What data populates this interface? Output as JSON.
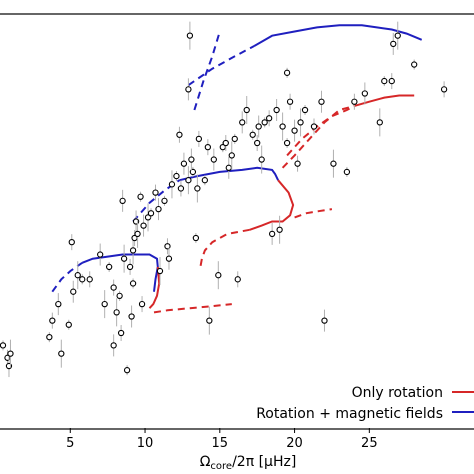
{
  "chart_data": {
    "type": "scatter",
    "xlabel_main": "Ω",
    "xlabel_sub": "core",
    "xlabel_rest": "/2π [μHz]",
    "xlim": [
      0.3,
      32
    ],
    "ylim": [
      0,
      1
    ],
    "x_ticks": [
      5,
      10,
      15,
      20,
      25
    ],
    "legend_position": "bottom-right",
    "colors": {
      "rotation": "#d62728",
      "magnetic": "#1f1fbf",
      "points": "#000000",
      "errorbars": "#b0b0b0"
    },
    "legend": [
      {
        "label": "Only rotation",
        "color": "#d62728"
      },
      {
        "label": "Rotation + magnetic fields",
        "color": "#1f1fbf"
      }
    ],
    "points": [
      [
        0.5,
        0.2
      ],
      [
        0.8,
        0.17
      ],
      [
        0.9,
        0.15
      ],
      [
        1.0,
        0.18
      ],
      [
        3.6,
        0.22
      ],
      [
        3.8,
        0.26
      ],
      [
        4.2,
        0.3
      ],
      [
        4.4,
        0.18
      ],
      [
        4.9,
        0.25
      ],
      [
        5.1,
        0.45
      ],
      [
        5.2,
        0.33
      ],
      [
        5.5,
        0.37
      ],
      [
        5.8,
        0.36
      ],
      [
        6.3,
        0.36
      ],
      [
        7.0,
        0.42
      ],
      [
        7.3,
        0.3
      ],
      [
        7.6,
        0.39
      ],
      [
        7.9,
        0.34
      ],
      [
        7.9,
        0.2
      ],
      [
        8.1,
        0.28
      ],
      [
        8.3,
        0.32
      ],
      [
        8.4,
        0.23
      ],
      [
        8.5,
        0.55
      ],
      [
        8.6,
        0.41
      ],
      [
        8.8,
        0.14
      ],
      [
        9.0,
        0.39
      ],
      [
        9.1,
        0.27
      ],
      [
        9.2,
        0.43
      ],
      [
        9.2,
        0.35
      ],
      [
        9.3,
        0.46
      ],
      [
        9.4,
        0.5
      ],
      [
        9.5,
        0.47
      ],
      [
        9.7,
        0.56
      ],
      [
        9.8,
        0.3
      ],
      [
        9.9,
        0.49
      ],
      [
        10.2,
        0.51
      ],
      [
        10.4,
        0.52
      ],
      [
        10.7,
        0.57
      ],
      [
        10.9,
        0.53
      ],
      [
        11.0,
        0.38
      ],
      [
        11.3,
        0.55
      ],
      [
        11.5,
        0.44
      ],
      [
        11.6,
        0.41
      ],
      [
        11.8,
        0.59
      ],
      [
        12.1,
        0.61
      ],
      [
        12.4,
        0.58
      ],
      [
        12.6,
        0.64
      ],
      [
        12.9,
        0.6
      ],
      [
        13.2,
        0.62
      ],
      [
        12.3,
        0.71
      ],
      [
        13.1,
        0.65
      ],
      [
        13.5,
        0.58
      ],
      [
        13.4,
        0.46
      ],
      [
        13.6,
        0.7
      ],
      [
        12.9,
        0.82
      ],
      [
        13.0,
        0.95
      ],
      [
        14.0,
        0.6
      ],
      [
        14.2,
        0.68
      ],
      [
        14.6,
        0.65
      ],
      [
        14.9,
        0.37
      ],
      [
        15.2,
        0.68
      ],
      [
        15.4,
        0.69
      ],
      [
        15.6,
        0.63
      ],
      [
        15.8,
        0.66
      ],
      [
        16.0,
        0.7
      ],
      [
        16.2,
        0.36
      ],
      [
        16.5,
        0.74
      ],
      [
        16.8,
        0.77
      ],
      [
        17.2,
        0.71
      ],
      [
        17.5,
        0.69
      ],
      [
        17.6,
        0.73
      ],
      [
        17.8,
        0.65
      ],
      [
        18.0,
        0.74
      ],
      [
        18.3,
        0.75
      ],
      [
        18.8,
        0.77
      ],
      [
        19.2,
        0.73
      ],
      [
        19.5,
        0.86
      ],
      [
        19.7,
        0.79
      ],
      [
        20.0,
        0.72
      ],
      [
        20.4,
        0.74
      ],
      [
        20.7,
        0.77
      ],
      [
        21.3,
        0.73
      ],
      [
        21.8,
        0.79
      ],
      [
        22.6,
        0.64
      ],
      [
        23.5,
        0.62
      ],
      [
        24.0,
        0.79
      ],
      [
        24.7,
        0.81
      ],
      [
        25.7,
        0.74
      ],
      [
        26.0,
        0.84
      ],
      [
        26.5,
        0.84
      ],
      [
        26.6,
        0.93
      ],
      [
        26.9,
        0.95
      ],
      [
        28.0,
        0.88
      ],
      [
        30.0,
        0.82
      ],
      [
        18.5,
        0.47
      ],
      [
        19.0,
        0.48
      ],
      [
        19.5,
        0.69
      ],
      [
        20.2,
        0.64
      ],
      [
        22.0,
        0.26
      ],
      [
        14.3,
        0.26
      ]
    ],
    "series": [
      {
        "name": "Rotation + magnetic fields",
        "color": "#1f1fbf",
        "style": "solid",
        "x": [
          5.8,
          6.5,
          7.5,
          8.5,
          9.5,
          10.3,
          10.8,
          10.85,
          10.7,
          10.6
        ],
        "y": [
          0.4,
          0.41,
          0.415,
          0.42,
          0.42,
          0.42,
          0.41,
          0.39,
          0.36,
          0.33
        ]
      },
      {
        "name": "Rotation + magnetic fields",
        "color": "#1f1fbf",
        "style": "dashed",
        "x": [
          3.8,
          4.4,
          5.0,
          5.8
        ],
        "y": [
          0.33,
          0.36,
          0.38,
          0.4
        ]
      },
      {
        "name": "Only rotation",
        "color": "#d62728",
        "style": "solid",
        "x": [
          10.85,
          10.95,
          10.8,
          10.55,
          10.3
        ],
        "y": [
          0.39,
          0.35,
          0.32,
          0.3,
          0.29
        ]
      },
      {
        "name": "Only rotation",
        "color": "#d62728",
        "style": "dashed",
        "x": [
          10.6,
          11.5,
          13.0,
          14.5,
          15.8
        ],
        "y": [
          0.28,
          0.285,
          0.29,
          0.295,
          0.3
        ]
      },
      {
        "name": "Rotation + magnetic fields",
        "color": "#1f1fbf",
        "style": "dashed",
        "x": [
          9.2,
          10.3,
          11.3,
          12.3
        ],
        "y": [
          0.5,
          0.545,
          0.575,
          0.6
        ]
      },
      {
        "name": "Rotation + magnetic fields",
        "color": "#1f1fbf",
        "style": "solid",
        "x": [
          12.3,
          13.5,
          15.0,
          16.5,
          17.5,
          18.5,
          18.7,
          18.9
        ],
        "y": [
          0.6,
          0.61,
          0.62,
          0.625,
          0.63,
          0.625,
          0.615,
          0.6
        ]
      },
      {
        "name": "Only rotation",
        "color": "#d62728",
        "style": "solid",
        "x": [
          18.9,
          19.6,
          19.9,
          19.7,
          19.2,
          18.5,
          17.8,
          17.0
        ],
        "y": [
          0.6,
          0.57,
          0.54,
          0.515,
          0.5,
          0.5,
          0.49,
          0.48
        ]
      },
      {
        "name": "Only rotation",
        "color": "#d62728",
        "style": "dashed",
        "x": [
          17.0,
          15.5,
          14.5,
          14.0,
          13.8,
          13.7
        ],
        "y": [
          0.48,
          0.47,
          0.45,
          0.43,
          0.41,
          0.39
        ]
      },
      {
        "name": "Only rotation",
        "color": "#d62728",
        "style": "dashed",
        "x": [
          20.0,
          20.8,
          21.6,
          22.5
        ],
        "y": [
          0.51,
          0.52,
          0.525,
          0.53
        ]
      },
      {
        "name": "Rotation + magnetic fields",
        "color": "#1f1fbf",
        "style": "dashed",
        "x": [
          12.9,
          14.5,
          16.0,
          17.3
        ],
        "y": [
          0.83,
          0.87,
          0.9,
          0.925
        ]
      },
      {
        "name": "Rotation + magnetic fields",
        "color": "#1f1fbf",
        "style": "dashed",
        "x": [
          13.3,
          13.9,
          14.5,
          15.0
        ],
        "y": [
          0.77,
          0.84,
          0.9,
          0.96
        ]
      },
      {
        "name": "Rotation + magnetic fields",
        "color": "#1f1fbf",
        "style": "solid",
        "x": [
          17.3,
          18.5,
          20.0,
          21.5,
          23.0,
          24.5,
          25.5,
          26.5,
          27.5,
          28.5
        ],
        "y": [
          0.925,
          0.95,
          0.96,
          0.97,
          0.975,
          0.975,
          0.97,
          0.965,
          0.955,
          0.94
        ]
      },
      {
        "name": "Only rotation",
        "color": "#d62728",
        "style": "solid",
        "x": [
          24.0,
          25.0,
          26.0,
          27.0,
          28.0
        ],
        "y": [
          0.78,
          0.79,
          0.8,
          0.805,
          0.805
        ]
      },
      {
        "name": "Only rotation",
        "color": "#d62728",
        "style": "dashed",
        "x": [
          19.5,
          20.5,
          21.5,
          22.5,
          23.5,
          24.0
        ],
        "y": [
          0.66,
          0.7,
          0.73,
          0.755,
          0.77,
          0.78
        ]
      },
      {
        "name": "Only rotation",
        "color": "#d62728",
        "style": "dashed",
        "x": [
          19.2,
          20.0,
          21.0,
          22.0,
          23.0,
          24.0
        ],
        "y": [
          0.63,
          0.66,
          0.7,
          0.74,
          0.77,
          0.78
        ]
      }
    ]
  }
}
